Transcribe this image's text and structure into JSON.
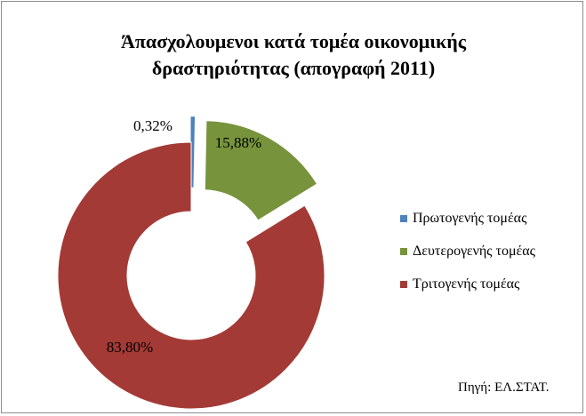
{
  "chart_data": {
    "type": "pie",
    "style": "doughnut",
    "title_line1": "Άπασχολουμενοι κατά τομέα οικονομικής",
    "title_line2": "δραστηριότητας (απογραφή 2011)",
    "categories": [
      "Πρωτογενής τομέας",
      "Δευτερογενής τομέας",
      "Τριτογενής τομέας"
    ],
    "values": [
      0.32,
      15.88,
      83.8
    ],
    "data_labels": [
      "0,32%",
      "15,88%",
      "83,80%"
    ],
    "colors": [
      "#4f81bd",
      "#77933c",
      "#a33a35"
    ],
    "exploded": [
      true,
      true,
      false
    ],
    "legend_position": "right",
    "source": "Πηγή: ΕΛ.ΣΤΑΤ."
  }
}
